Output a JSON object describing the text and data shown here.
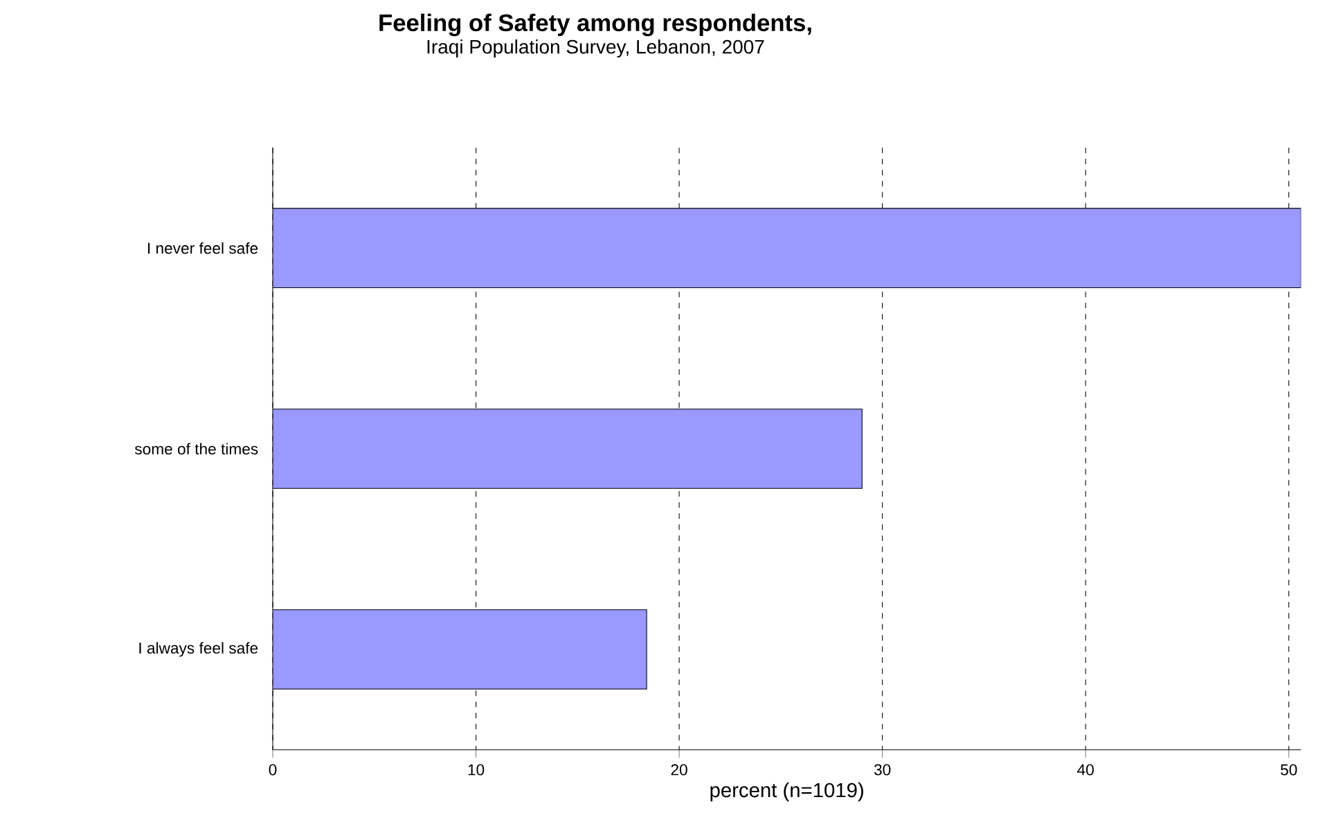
{
  "chart_data": {
    "type": "bar",
    "orientation": "horizontal",
    "title": "Feeling of Safety among respondents,",
    "subtitle": "Iraqi Population Survey, Lebanon, 2007",
    "xlabel": "percent   (n=1019)",
    "categories": [
      "I never feel safe",
      "some of the times",
      "I always feel safe"
    ],
    "values": [
      50.6,
      29.0,
      18.4
    ],
    "color": "#9999ff",
    "xlim": [
      0,
      50.6
    ],
    "xticks": [
      0,
      10,
      20,
      30,
      40,
      50
    ],
    "grid": "x"
  }
}
